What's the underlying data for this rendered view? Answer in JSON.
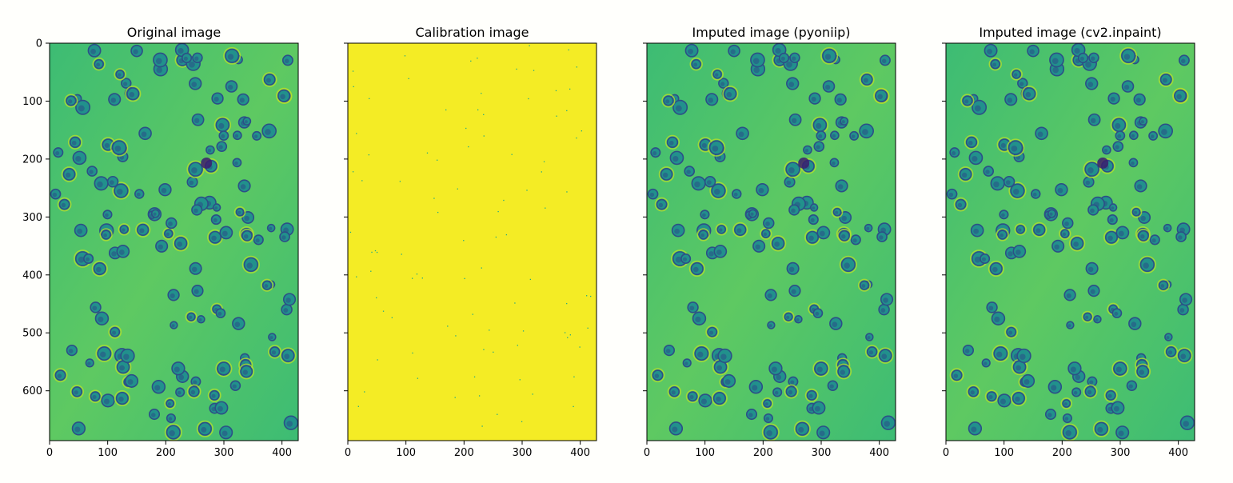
{
  "chart_data": [
    {
      "type": "heatmap",
      "title": "Original image",
      "image_kind": "cell-microscopy",
      "colormap": "viridis",
      "xlim": [
        0,
        428
      ],
      "ylim": [
        686,
        0
      ],
      "xticks": [
        0,
        100,
        200,
        300,
        400
      ],
      "yticks": [
        0,
        100,
        200,
        300,
        400,
        500,
        600
      ],
      "show_ytick_labels": true
    },
    {
      "type": "heatmap",
      "title": "Calibration image",
      "image_kind": "calibration-mask",
      "colormap": "viridis",
      "xlim": [
        0,
        428
      ],
      "ylim": [
        686,
        0
      ],
      "xticks": [
        0,
        100,
        200,
        300,
        400
      ],
      "yticks": [
        0,
        100,
        200,
        300,
        400,
        500,
        600
      ],
      "show_ytick_labels": false
    },
    {
      "type": "heatmap",
      "title": "Imputed image (pyoniip)",
      "image_kind": "cell-microscopy",
      "colormap": "viridis",
      "xlim": [
        0,
        428
      ],
      "ylim": [
        686,
        0
      ],
      "xticks": [
        0,
        100,
        200,
        300,
        400
      ],
      "yticks": [
        0,
        100,
        200,
        300,
        400,
        500,
        600
      ],
      "show_ytick_labels": false
    },
    {
      "type": "heatmap",
      "title": "Imputed image (cv2.inpaint)",
      "image_kind": "cell-microscopy",
      "colormap": "viridis",
      "xlim": [
        0,
        428
      ],
      "ylim": [
        686,
        0
      ],
      "xticks": [
        0,
        100,
        200,
        300,
        400
      ],
      "yticks": [
        0,
        100,
        200,
        300,
        400,
        500,
        600
      ],
      "show_ytick_labels": false
    }
  ],
  "colors": {
    "background": "#fffffc",
    "microscopy_bg": "#3dbc74",
    "microscopy_bg_light": "#5ec962",
    "cell_dark": "#2c4f87",
    "cell_mid": "#21918c",
    "cell_rim": "#b5de2b",
    "calibration_fill": "#f4ec25",
    "calibration_dot": "#22a884"
  }
}
